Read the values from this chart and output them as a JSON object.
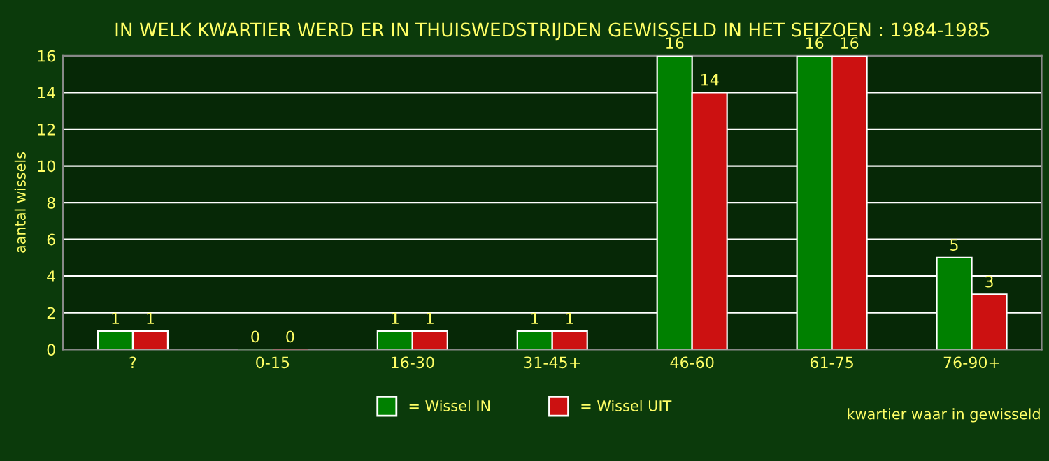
{
  "chart_data": {
    "type": "bar",
    "title": "IN WELK KWARTIER WERD ER IN THUISWEDSTRIJDEN GEWISSELD IN HET SEIZOEN : 1984-1985",
    "categories": [
      "?",
      "0-15",
      "16-30",
      "31-45+",
      "46-60",
      "61-75",
      "76-90+"
    ],
    "series": [
      {
        "name": "= Wissel IN",
        "color": "#008000",
        "values": [
          1,
          0,
          1,
          1,
          16,
          16,
          5
        ]
      },
      {
        "name": "= Wissel UIT",
        "color": "#cc1111",
        "values": [
          1,
          0,
          1,
          1,
          14,
          16,
          3
        ]
      }
    ],
    "xlabel": "kwartier waar in gewisseld",
    "ylabel": "aantal wissels",
    "ylim": [
      0,
      16
    ],
    "yticks": [
      0,
      2,
      4,
      6,
      8,
      10,
      12,
      14,
      16
    ],
    "grid": "y",
    "legend": "bottom",
    "data_labels": true
  }
}
